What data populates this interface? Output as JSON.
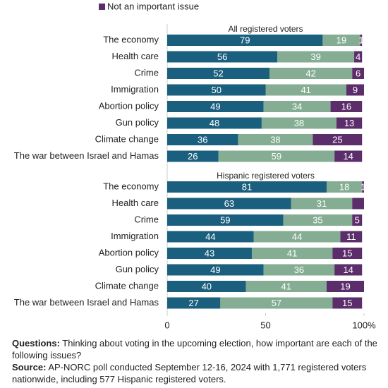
{
  "chart_data": [
    {
      "type": "stacked-bar",
      "title": "All registered voters",
      "categories": [
        "The economy",
        "Health care",
        "Crime",
        "Immigration",
        "Abortion policy",
        "Gun policy",
        "Climate change",
        "The war between Israel and Hamas"
      ],
      "series": [
        {
          "color": "#1b5f7e",
          "values": [
            79,
            56,
            52,
            50,
            49,
            48,
            36,
            26
          ]
        },
        {
          "color": "#84ad93",
          "values": [
            19,
            39,
            42,
            41,
            34,
            38,
            38,
            59
          ]
        },
        {
          "name": "Not an important issue",
          "color": "#5c2d6b",
          "values": [
            1,
            4,
            6,
            9,
            16,
            13,
            25,
            14
          ]
        }
      ],
      "xlim": [
        0,
        100
      ]
    },
    {
      "type": "stacked-bar",
      "title": "Hispanic registered voters",
      "categories": [
        "The economy",
        "Health care",
        "Crime",
        "Immigration",
        "Abortion policy",
        "Gun policy",
        "Climate change",
        "The war between Israel and Hamas"
      ],
      "series": [
        {
          "color": "#1b5f7e",
          "values": [
            81,
            63,
            59,
            44,
            43,
            49,
            40,
            27
          ]
        },
        {
          "color": "#84ad93",
          "values": [
            18,
            31,
            35,
            44,
            41,
            36,
            41,
            57
          ]
        },
        {
          "color": "#5c2d6b",
          "values": [
            1,
            6,
            5,
            11,
            15,
            14,
            19,
            15
          ],
          "value_labels": [
            "1",
            null,
            "5",
            "11",
            "15",
            "14",
            "19",
            "15"
          ]
        }
      ],
      "xlim": [
        0,
        100
      ],
      "xticks": [
        0,
        50,
        {
          "value": 100,
          "label": "100%"
        }
      ]
    }
  ],
  "notes": {
    "questions_label": "Questions:",
    "questions": "Thinking about voting in the upcoming election, how important are each of the following issues?",
    "source_label": "Source:",
    "source": "AP-NORC poll conducted September 12-16, 2024 with 1,771 registered voters nationwide, including 577 Hispanic registered voters."
  }
}
